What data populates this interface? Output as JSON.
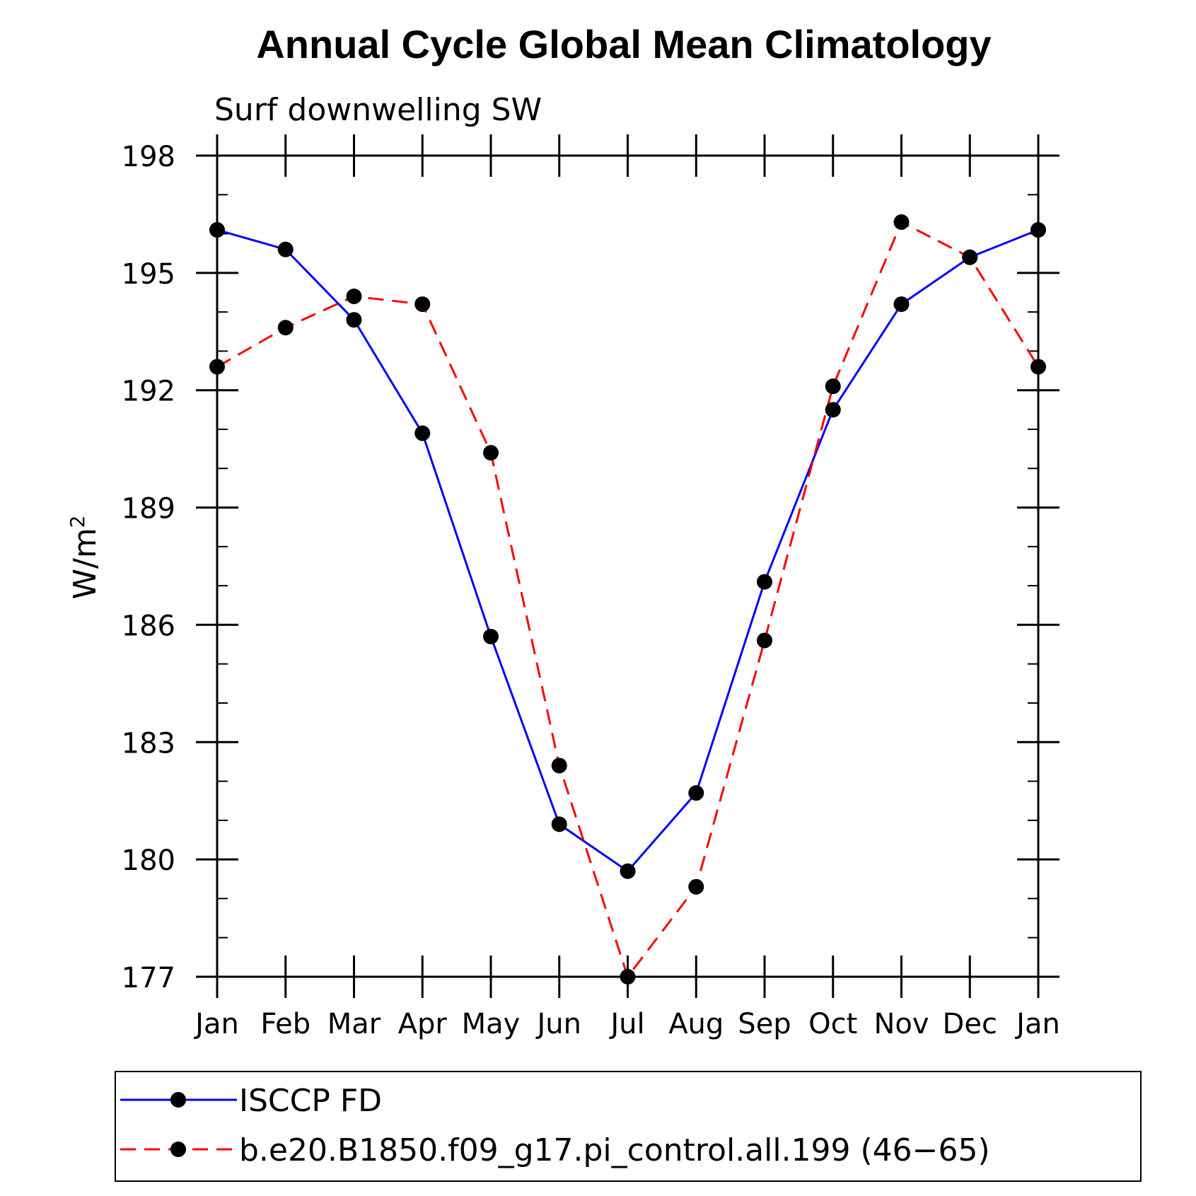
{
  "chart_data": {
    "type": "line",
    "title": "Annual Cycle Global Mean Climatology",
    "subtitle": "Surf downwelling SW",
    "ylabel": "W/m",
    "ylabel_superscript": "2",
    "xlabel": "",
    "ylim": [
      177,
      198
    ],
    "yticks": [
      177,
      180,
      183,
      186,
      189,
      192,
      195,
      198
    ],
    "categories": [
      "Jan",
      "Feb",
      "Mar",
      "Apr",
      "May",
      "Jun",
      "Jul",
      "Aug",
      "Sep",
      "Oct",
      "Nov",
      "Dec",
      "Jan"
    ],
    "series": [
      {
        "name": "ISCCP FD",
        "color": "#0000ff",
        "dash": "solid",
        "values": [
          196.1,
          195.6,
          193.8,
          190.9,
          185.7,
          180.9,
          179.7,
          181.7,
          187.1,
          191.5,
          194.2,
          195.4,
          196.1
        ]
      },
      {
        "name": "b.e20.B1850.f09_g17.pi_control.all.199 (46−65)",
        "color": "#ff0000",
        "dash": "dashed",
        "values": [
          192.6,
          193.6,
          194.4,
          194.2,
          190.4,
          182.4,
          177.0,
          179.3,
          185.6,
          192.1,
          196.3,
          195.4,
          192.6
        ]
      }
    ],
    "grid": false,
    "legend_position": "bottom"
  }
}
